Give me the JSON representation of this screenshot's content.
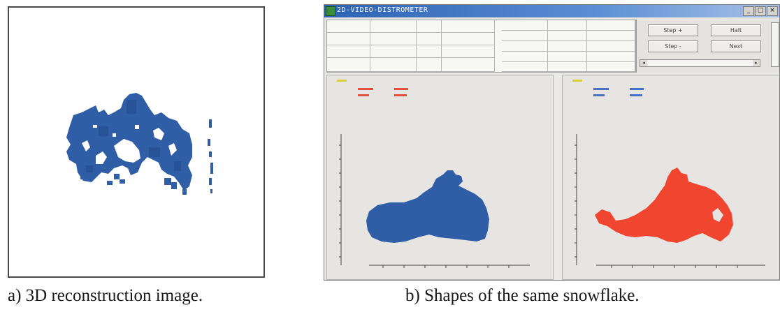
{
  "captions": {
    "a": "a) 3D reconstruction image.",
    "b": "b) Shapes of the same snowflake."
  },
  "software": {
    "window_title": "2D-VIDEO-DISTROMETER",
    "window_buttons": [
      "_",
      "□",
      "×"
    ],
    "controls": {
      "step_plus": "Step +",
      "step_minus": "Step -",
      "halt": "Halt",
      "next": "Next"
    },
    "colors": {
      "camera_a_particle": "#2f5ea6",
      "camera_b_particle": "#f0452e",
      "window_bg": "#e9e9e6"
    }
  },
  "reconstruction": {
    "color": "#2f5ea6"
  }
}
